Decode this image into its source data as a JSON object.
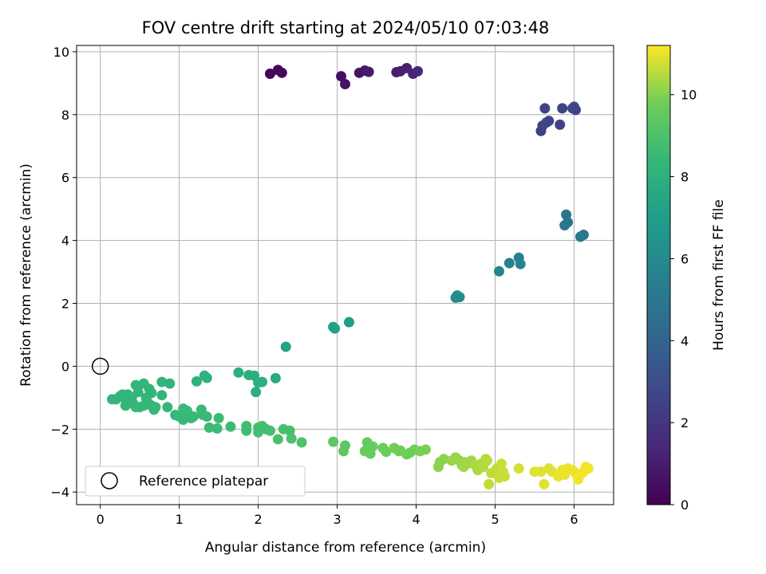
{
  "chart_data": {
    "type": "scatter",
    "title": "FOV centre drift starting at 2024/05/10 07:03:48",
    "xlabel": "Angular distance from reference (arcmin)",
    "ylabel": "Rotation from reference (arcmin)",
    "xlim": [
      -0.3,
      6.5
    ],
    "ylim": [
      -4.4,
      10.2
    ],
    "xticks": [
      0,
      1,
      2,
      3,
      4,
      5,
      6
    ],
    "yticks": [
      -4,
      -2,
      0,
      2,
      4,
      6,
      8,
      10
    ],
    "grid": true,
    "colormap": "viridis",
    "colorbar": {
      "label": "Hours from first FF file",
      "range": [
        0,
        11.2
      ],
      "ticks": [
        0,
        2,
        4,
        6,
        8,
        10
      ]
    },
    "legend": {
      "position": "bottom-left",
      "entries": [
        {
          "label": "Reference platepar",
          "marker": "open-circle"
        }
      ]
    },
    "reference_point": {
      "x": 0,
      "y": 0
    },
    "points": [
      [
        2.15,
        9.3,
        0.1
      ],
      [
        2.25,
        9.42,
        0.2
      ],
      [
        2.3,
        9.33,
        0.3
      ],
      [
        3.05,
        9.22,
        0.5
      ],
      [
        3.1,
        8.97,
        0.6
      ],
      [
        3.28,
        9.33,
        0.7
      ],
      [
        3.35,
        9.4,
        0.8
      ],
      [
        3.4,
        9.36,
        0.9
      ],
      [
        3.75,
        9.35,
        1.0
      ],
      [
        3.8,
        9.38,
        1.1
      ],
      [
        3.88,
        9.48,
        1.2
      ],
      [
        3.96,
        9.3,
        1.3
      ],
      [
        4.02,
        9.38,
        1.4
      ],
      [
        5.58,
        7.48,
        2.4
      ],
      [
        5.6,
        7.65,
        2.5
      ],
      [
        5.63,
        8.2,
        2.6
      ],
      [
        5.65,
        7.75,
        2.7
      ],
      [
        5.68,
        7.8,
        2.6
      ],
      [
        5.82,
        7.68,
        2.5
      ],
      [
        5.85,
        8.2,
        2.6
      ],
      [
        5.98,
        8.2,
        2.7
      ],
      [
        6.0,
        8.25,
        2.8
      ],
      [
        6.02,
        8.15,
        2.6
      ],
      [
        5.9,
        4.82,
        4.8
      ],
      [
        5.92,
        4.58,
        4.9
      ],
      [
        5.88,
        4.48,
        4.9
      ],
      [
        6.08,
        4.12,
        5.0
      ],
      [
        6.12,
        4.18,
        5.0
      ],
      [
        5.3,
        3.45,
        5.5
      ],
      [
        5.32,
        3.25,
        5.6
      ],
      [
        5.18,
        3.28,
        5.6
      ],
      [
        5.05,
        3.02,
        5.7
      ],
      [
        4.52,
        2.25,
        6.1
      ],
      [
        4.5,
        2.18,
        6.1
      ],
      [
        4.55,
        2.2,
        6.2
      ],
      [
        3.15,
        1.4,
        7.0
      ],
      [
        2.95,
        1.25,
        7.1
      ],
      [
        2.97,
        1.2,
        7.1
      ],
      [
        2.35,
        0.62,
        7.3
      ],
      [
        2.22,
        -0.38,
        7.7
      ],
      [
        2.05,
        -0.5,
        7.9
      ],
      [
        2.0,
        -0.52,
        7.9
      ],
      [
        1.95,
        -0.3,
        7.9
      ],
      [
        1.88,
        -0.28,
        7.9
      ],
      [
        1.75,
        -0.2,
        7.9
      ],
      [
        1.97,
        -0.82,
        7.9
      ],
      [
        1.32,
        -0.3,
        8.1
      ],
      [
        1.35,
        -0.37,
        8.1
      ],
      [
        1.22,
        -0.48,
        8.1
      ],
      [
        0.78,
        -0.5,
        8.2
      ],
      [
        0.88,
        -0.55,
        8.2
      ],
      [
        0.55,
        -0.55,
        8.3
      ],
      [
        0.45,
        -0.6,
        8.3
      ],
      [
        0.48,
        -0.82,
        8.3
      ],
      [
        0.62,
        -0.72,
        8.3
      ],
      [
        0.65,
        -0.85,
        8.3
      ],
      [
        0.58,
        -1.0,
        8.3
      ],
      [
        0.78,
        -0.92,
        8.3
      ],
      [
        0.35,
        -0.9,
        8.3
      ],
      [
        0.4,
        -1.0,
        8.3
      ],
      [
        0.42,
        -1.2,
        8.3
      ],
      [
        0.5,
        -1.3,
        8.3
      ],
      [
        0.3,
        -1.0,
        8.3
      ],
      [
        0.32,
        -1.25,
        8.3
      ],
      [
        0.25,
        -0.95,
        8.3
      ],
      [
        0.2,
        -1.05,
        8.3
      ],
      [
        0.15,
        -1.05,
        8.3
      ],
      [
        0.28,
        -0.9,
        8.3
      ],
      [
        0.6,
        -1.15,
        8.4
      ],
      [
        0.65,
        -1.25,
        8.4
      ],
      [
        0.7,
        -1.3,
        8.4
      ],
      [
        0.68,
        -1.38,
        8.4
      ],
      [
        0.55,
        -1.25,
        8.4
      ],
      [
        0.45,
        -1.3,
        8.4
      ],
      [
        0.85,
        -1.3,
        8.4
      ],
      [
        0.95,
        -1.55,
        8.4
      ],
      [
        1.0,
        -1.6,
        8.5
      ],
      [
        1.05,
        -1.35,
        8.5
      ],
      [
        1.05,
        -1.7,
        8.5
      ],
      [
        1.1,
        -1.42,
        8.5
      ],
      [
        1.15,
        -1.65,
        8.5
      ],
      [
        1.18,
        -1.6,
        8.5
      ],
      [
        1.28,
        -1.38,
        8.5
      ],
      [
        1.3,
        -1.55,
        8.5
      ],
      [
        1.35,
        -1.6,
        8.5
      ],
      [
        1.38,
        -1.95,
        8.6
      ],
      [
        1.5,
        -1.65,
        8.6
      ],
      [
        1.48,
        -1.98,
        8.6
      ],
      [
        1.65,
        -1.92,
        8.6
      ],
      [
        1.85,
        -1.9,
        8.7
      ],
      [
        1.85,
        -2.05,
        8.7
      ],
      [
        2.0,
        -1.95,
        8.8
      ],
      [
        2.0,
        -2.1,
        8.8
      ],
      [
        2.05,
        -1.9,
        8.8
      ],
      [
        2.1,
        -2.0,
        8.8
      ],
      [
        2.15,
        -2.05,
        8.8
      ],
      [
        2.25,
        -2.32,
        8.9
      ],
      [
        2.32,
        -2.0,
        8.9
      ],
      [
        2.4,
        -2.05,
        8.9
      ],
      [
        2.42,
        -2.3,
        9.0
      ],
      [
        2.55,
        -2.42,
        9.0
      ],
      [
        2.95,
        -2.4,
        9.3
      ],
      [
        3.1,
        -2.52,
        9.4
      ],
      [
        3.08,
        -2.7,
        9.4
      ],
      [
        3.35,
        -2.7,
        9.6
      ],
      [
        3.38,
        -2.42,
        9.6
      ],
      [
        3.42,
        -2.78,
        9.6
      ],
      [
        3.45,
        -2.55,
        9.6
      ],
      [
        3.4,
        -2.6,
        9.6
      ],
      [
        3.58,
        -2.6,
        9.7
      ],
      [
        3.62,
        -2.72,
        9.7
      ],
      [
        3.72,
        -2.6,
        9.8
      ],
      [
        3.78,
        -2.7,
        9.8
      ],
      [
        3.88,
        -2.8,
        9.8
      ],
      [
        3.92,
        -2.75,
        9.8
      ],
      [
        3.98,
        -2.65,
        9.8
      ],
      [
        4.05,
        -2.7,
        9.9
      ],
      [
        4.12,
        -2.65,
        9.9
      ],
      [
        3.8,
        -2.68,
        9.8
      ],
      [
        4.28,
        -3.2,
        10.1
      ],
      [
        4.3,
        -3.05,
        10.1
      ],
      [
        4.35,
        -2.95,
        10.1
      ],
      [
        4.45,
        -3.0,
        10.2
      ],
      [
        4.5,
        -2.9,
        10.2
      ],
      [
        4.55,
        -3.0,
        10.2
      ],
      [
        4.58,
        -3.15,
        10.2
      ],
      [
        4.6,
        -3.2,
        10.3
      ],
      [
        4.62,
        -3.05,
        10.3
      ],
      [
        4.65,
        -3.1,
        10.3
      ],
      [
        4.7,
        -3.0,
        10.3
      ],
      [
        4.75,
        -3.15,
        10.4
      ],
      [
        4.78,
        -3.3,
        10.4
      ],
      [
        4.82,
        -3.1,
        10.4
      ],
      [
        4.85,
        -3.2,
        10.5
      ],
      [
        4.88,
        -2.95,
        10.5
      ],
      [
        4.9,
        -3.0,
        10.5
      ],
      [
        4.92,
        -3.75,
        10.6
      ],
      [
        4.95,
        -3.4,
        10.6
      ],
      [
        5.02,
        -3.25,
        10.6
      ],
      [
        5.05,
        -3.55,
        10.7
      ],
      [
        5.08,
        -3.1,
        10.7
      ],
      [
        5.1,
        -3.35,
        10.7
      ],
      [
        5.12,
        -3.5,
        10.7
      ],
      [
        5.3,
        -3.25,
        10.8
      ],
      [
        5.5,
        -3.35,
        10.9
      ],
      [
        5.58,
        -3.35,
        10.9
      ],
      [
        5.62,
        -3.75,
        10.9
      ],
      [
        5.68,
        -3.25,
        10.9
      ],
      [
        5.72,
        -3.35,
        10.9
      ],
      [
        5.8,
        -3.5,
        11.0
      ],
      [
        5.85,
        -3.3,
        11.0
      ],
      [
        5.88,
        -3.45,
        11.0
      ],
      [
        5.92,
        -3.25,
        11.0
      ],
      [
        5.98,
        -3.3,
        11.0
      ],
      [
        6.02,
        -3.4,
        11.0
      ],
      [
        6.05,
        -3.6,
        11.1
      ],
      [
        6.08,
        -3.45,
        11.1
      ],
      [
        6.12,
        -3.35,
        11.1
      ],
      [
        6.15,
        -3.2,
        11.1
      ],
      [
        6.18,
        -3.25,
        11.1
      ]
    ]
  },
  "colors": {
    "grid": "#b0b0b0",
    "axes": "#000000",
    "background": "#ffffff"
  }
}
